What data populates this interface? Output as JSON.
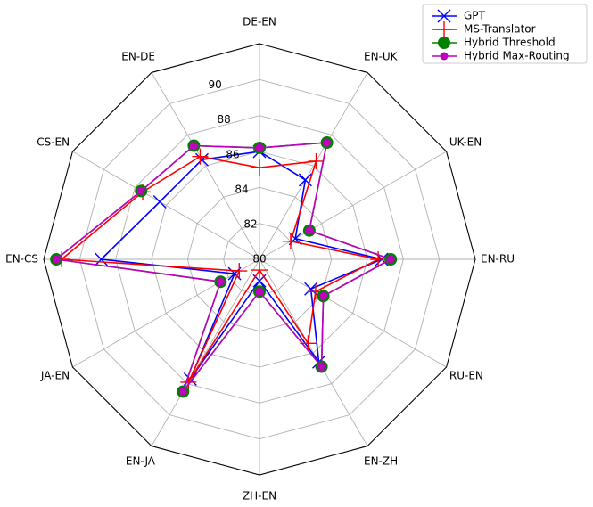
{
  "chart_data": {
    "type": "radar",
    "axes": [
      "DE-EN",
      "EN-UK",
      "UK-EN",
      "EN-RU",
      "RU-EN",
      "EN-ZH",
      "ZH-EN",
      "EN-JA",
      "JA-EN",
      "EN-CS",
      "CS-EN",
      "EN-DE"
    ],
    "r_ticks": [
      "80",
      "82",
      "84",
      "86",
      "88",
      "90"
    ],
    "r_range": [
      80,
      92
    ],
    "grid": true,
    "legend_position": "top-right",
    "series": [
      {
        "name": "GPT",
        "color": "#0000ff",
        "marker": "x",
        "values": [
          86.0,
          85.1,
          82.3,
          86.8,
          83.3,
          86.6,
          81.2,
          87.7,
          81.6,
          88.8,
          86.4,
          86.4
        ]
      },
      {
        "name": "MS-Translator",
        "color": "#ff0000",
        "marker": "plus",
        "values": [
          85.1,
          86.3,
          82.0,
          86.6,
          83.6,
          85.4,
          80.6,
          87.9,
          81.3,
          91.0,
          87.5,
          86.6
        ]
      },
      {
        "name": "Hybrid Threshold",
        "color": "#008000",
        "marker": "circle",
        "values": [
          86.2,
          87.5,
          83.2,
          87.3,
          84.1,
          86.9,
          81.8,
          88.5,
          82.5,
          91.3,
          87.6,
          87.3
        ]
      },
      {
        "name": "Hybrid Max-Routing",
        "color": "#bf00bf",
        "marker": "circle-small",
        "values": [
          86.2,
          87.5,
          83.2,
          87.3,
          84.1,
          86.9,
          81.8,
          88.5,
          82.5,
          91.3,
          87.6,
          87.3
        ]
      }
    ]
  }
}
